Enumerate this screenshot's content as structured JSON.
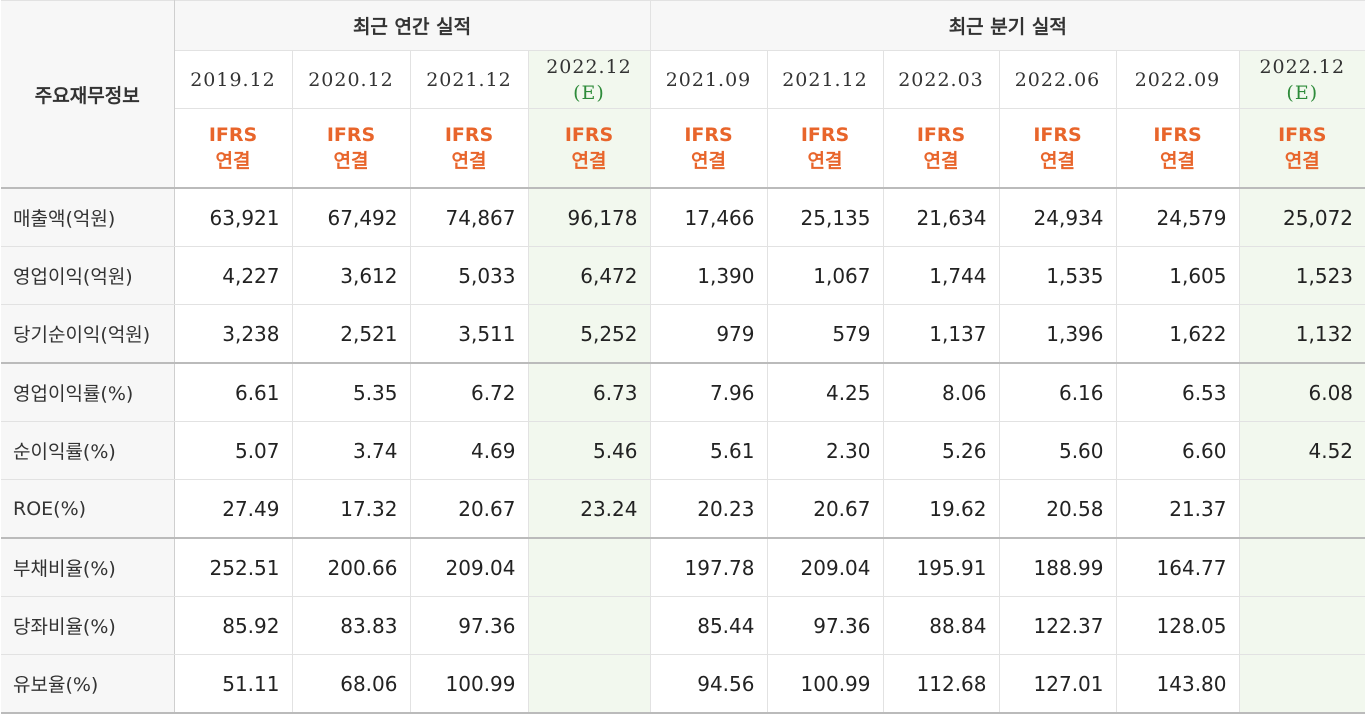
{
  "table": {
    "corner_label": "주요재무정보",
    "group_annual": "최근 연간 실적",
    "group_quarter": "최근 분기 실적",
    "periods": [
      {
        "label": "2019.12",
        "est": ""
      },
      {
        "label": "2020.12",
        "est": ""
      },
      {
        "label": "2021.12",
        "est": ""
      },
      {
        "label": "2022.12",
        "est": "(E)"
      },
      {
        "label": "2021.09",
        "est": ""
      },
      {
        "label": "2021.12",
        "est": ""
      },
      {
        "label": "2022.03",
        "est": ""
      },
      {
        "label": "2022.06",
        "est": ""
      },
      {
        "label": "2022.09",
        "est": ""
      },
      {
        "label": "2022.12",
        "est": "(E)"
      }
    ],
    "ifrs_line1": "IFRS",
    "ifrs_line2": "연결",
    "rows": [
      {
        "label": "매출액(억원)",
        "values": [
          "63,921",
          "67,492",
          "74,867",
          "96,178",
          "17,466",
          "25,135",
          "21,634",
          "24,934",
          "24,579",
          "25,072"
        ]
      },
      {
        "label": "영업이익(억원)",
        "values": [
          "4,227",
          "3,612",
          "5,033",
          "6,472",
          "1,390",
          "1,067",
          "1,744",
          "1,535",
          "1,605",
          "1,523"
        ]
      },
      {
        "label": "당기순이익(억원)",
        "values": [
          "3,238",
          "2,521",
          "3,511",
          "5,252",
          "979",
          "579",
          "1,137",
          "1,396",
          "1,622",
          "1,132"
        ]
      },
      {
        "label": "영업이익률(%)",
        "values": [
          "6.61",
          "5.35",
          "6.72",
          "6.73",
          "7.96",
          "4.25",
          "8.06",
          "6.16",
          "6.53",
          "6.08"
        ]
      },
      {
        "label": "순이익률(%)",
        "values": [
          "5.07",
          "3.74",
          "4.69",
          "5.46",
          "5.61",
          "2.30",
          "5.26",
          "5.60",
          "6.60",
          "4.52"
        ]
      },
      {
        "label": "ROE(%)",
        "values": [
          "27.49",
          "17.32",
          "20.67",
          "23.24",
          "20.23",
          "20.67",
          "19.62",
          "20.58",
          "21.37",
          ""
        ]
      },
      {
        "label": "부채비율(%)",
        "values": [
          "252.51",
          "200.66",
          "209.04",
          "",
          "197.78",
          "209.04",
          "195.91",
          "188.99",
          "164.77",
          ""
        ]
      },
      {
        "label": "당좌비율(%)",
        "values": [
          "85.92",
          "83.83",
          "97.36",
          "",
          "85.44",
          "97.36",
          "88.84",
          "122.37",
          "128.05",
          ""
        ]
      },
      {
        "label": "유보율(%)",
        "values": [
          "51.11",
          "68.06",
          "100.99",
          "",
          "94.56",
          "100.99",
          "112.68",
          "127.01",
          "143.80",
          ""
        ]
      }
    ]
  },
  "colors": {
    "ifrs_text": "#e8652b",
    "estimate_text": "#2e8b3a",
    "estimate_column_bg": "#f2f8ee",
    "header_bg": "#f7f7f7"
  }
}
